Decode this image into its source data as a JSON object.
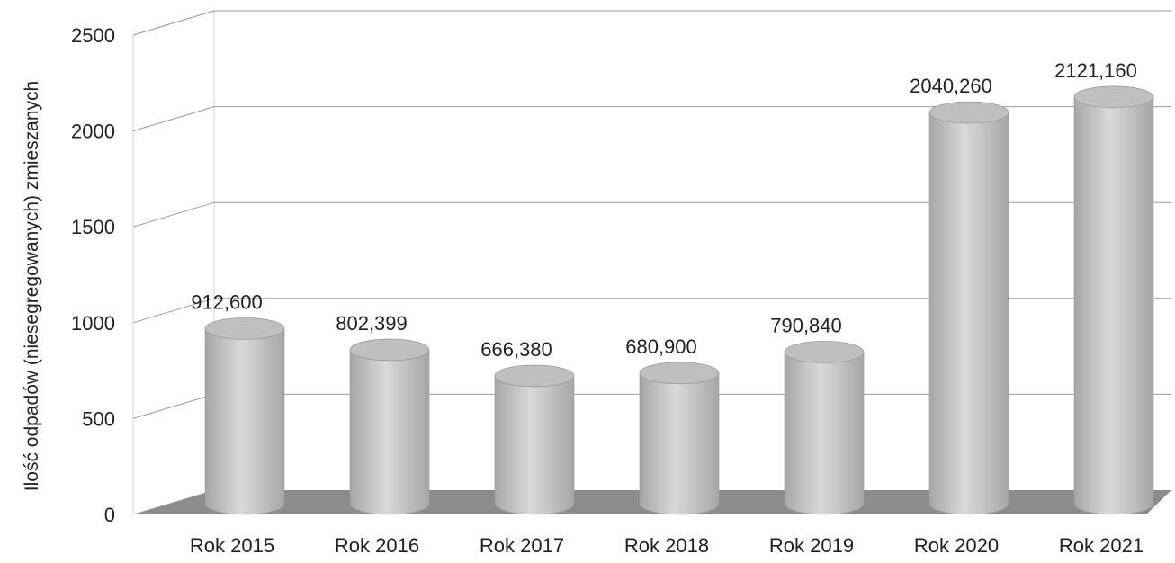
{
  "chart_data": {
    "type": "bar",
    "style": "3d-cylinder",
    "categories": [
      "Rok 2015",
      "Rok 2016",
      "Rok 2017",
      "Rok 2018",
      "Rok 2019",
      "Rok 2020",
      "Rok 2021"
    ],
    "values": [
      912.6,
      802.399,
      666.38,
      680.9,
      790.84,
      2040.26,
      2121.16
    ],
    "data_labels": [
      "912,600",
      "802,399",
      "666,380",
      "680,900",
      "790,840",
      "2040,260",
      "2121,160"
    ],
    "title": "",
    "xlabel": "",
    "ylabel": "Ilość odpadów (niesegregowanych) zmieszanych",
    "ylim": [
      0,
      2500
    ],
    "yticks": [
      0,
      500,
      1000,
      1500,
      2000,
      2500
    ],
    "ytick_labels": [
      "0",
      "500",
      "1000",
      "1500",
      "2000",
      "2500"
    ],
    "grid": true,
    "legend": "none",
    "colors": {
      "bar_body": "#d9d9d9",
      "bar_shade": "#a6a6a6",
      "bar_top": "#bfbfbf",
      "floor": "#8c8c8c",
      "gridline": "#9a9a9a"
    }
  }
}
